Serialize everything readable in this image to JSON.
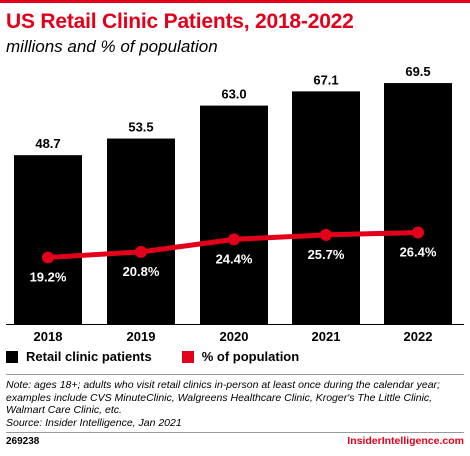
{
  "title": "US Retail Clinic Patients, 2018-2022",
  "subtitle": "millions and % of population",
  "colors": {
    "accent": "#e2001a",
    "bars": "#000000",
    "line": "#e2001a"
  },
  "chart_data": {
    "type": "bar",
    "categories": [
      "2018",
      "2019",
      "2020",
      "2021",
      "2022"
    ],
    "series": [
      {
        "name": "Retail clinic patients",
        "type": "bar",
        "values": [
          48.7,
          53.5,
          63.0,
          67.1,
          69.5
        ],
        "labels": [
          "48.7",
          "53.5",
          "63.0",
          "67.1",
          "69.5"
        ],
        "color": "#000000"
      },
      {
        "name": "% of population",
        "type": "line",
        "values": [
          19.2,
          20.8,
          24.4,
          25.7,
          26.4
        ],
        "labels": [
          "19.2%",
          "20.8%",
          "24.4%",
          "25.7%",
          "26.4%"
        ],
        "color": "#e2001a"
      }
    ],
    "ylim_bars": [
      0,
      75
    ],
    "ylim_line": [
      0,
      75
    ],
    "grid": false,
    "legend": "bottom-left"
  },
  "legend": {
    "bars_label": "Retail clinic patients",
    "line_label": "% of population"
  },
  "note": "Note: ages 18+; adults who visit retail clinics in-person at least once during the calendar year; examples include CVS MinuteClinic, Walgreens Healthcare Clinic, Kroger's The Little Clinic, Walmart Care Clinic, etc.",
  "source": "Source: Insider Intelligence, Jan 2021",
  "chart_id": "269238",
  "brand": "InsiderIntelligence.com"
}
